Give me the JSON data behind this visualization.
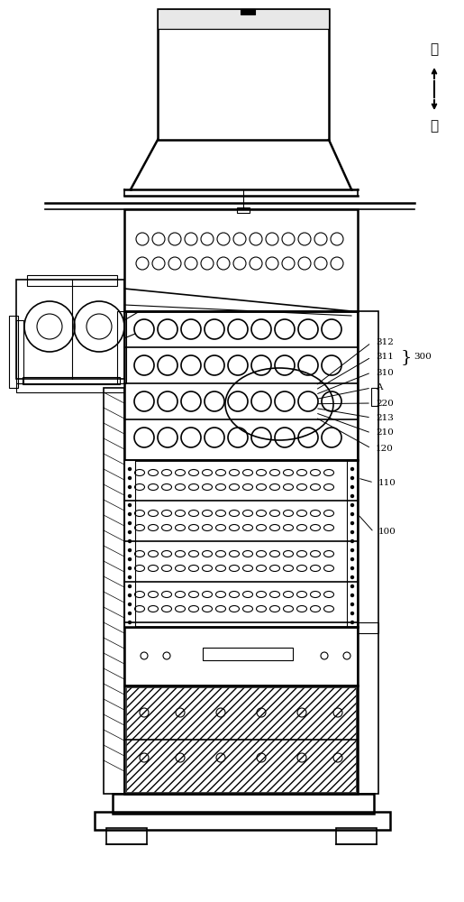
{
  "bg_color": "#ffffff",
  "line_color": "#000000",
  "arrow_up": "上",
  "arrow_down": "下"
}
